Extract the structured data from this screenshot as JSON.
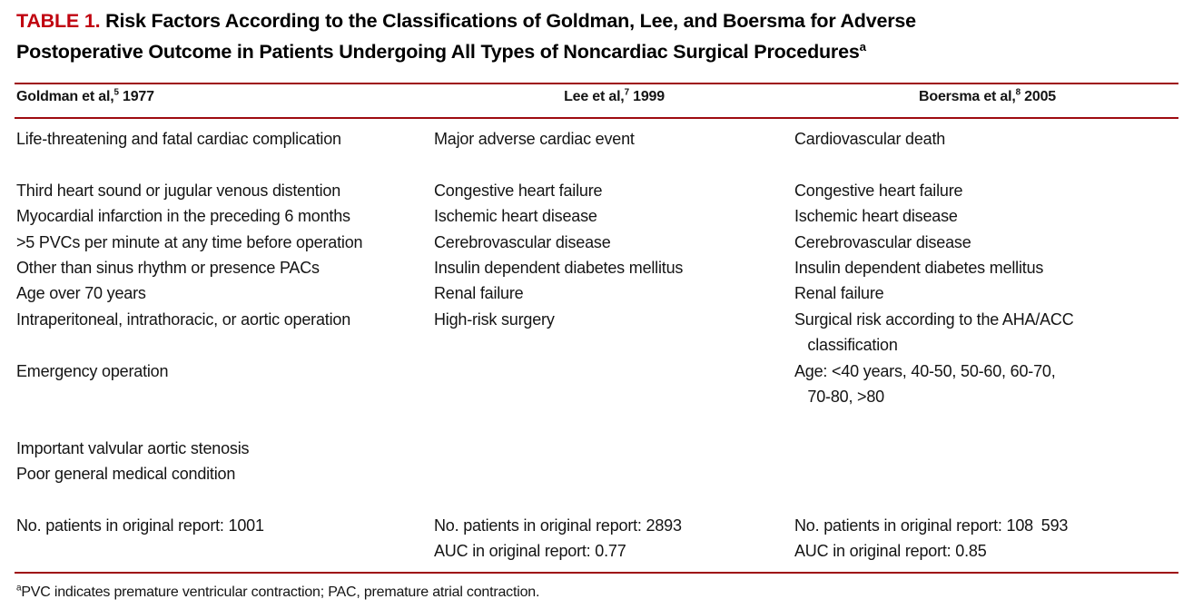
{
  "colors": {
    "red-label": "#c00410",
    "red-rule": "#9e0b10",
    "text": "#141414"
  },
  "title": {
    "label": "TABLE 1.",
    "line1_rest": " Risk Factors According to the Classifications of Goldman, Lee, and Boersma for Adverse",
    "line2": "Postoperative Outcome in Patients Undergoing All Types of Noncardiac Surgical Procedures",
    "superscript": "a"
  },
  "columns": [
    {
      "name": "Goldman et al,",
      "ref": "5",
      "year": " 1977"
    },
    {
      "name": "Lee et al,",
      "ref": "7",
      "year": " 1999"
    },
    {
      "name": "Boersma et al,",
      "ref": "8",
      "year": " 2005"
    }
  ],
  "rows": [
    {
      "g": "Life-threatening and fatal cardiac complication",
      "l": "Major adverse cardiac event",
      "b": "Cardiovascular death"
    },
    {
      "g": "",
      "l": "",
      "b": ""
    },
    {
      "g": "Third heart sound or jugular venous distention",
      "l": "Congestive heart failure",
      "b": "Congestive heart failure"
    },
    {
      "g": "Myocardial infarction in the preceding 6 months",
      "l": "Ischemic heart disease",
      "b": "Ischemic heart disease"
    },
    {
      "g": ">5 PVCs per minute at any time before operation",
      "l": "Cerebrovascular disease",
      "b": "Cerebrovascular disease"
    },
    {
      "g": "Other than sinus rhythm or presence PACs",
      "l": "Insulin dependent diabetes mellitus",
      "b": "Insulin dependent diabetes mellitus"
    },
    {
      "g": "Age over 70 years",
      "l": "Renal failure",
      "b": "Renal failure"
    },
    {
      "g": "Intraperitoneal, intrathoracic, or aortic operation",
      "l": "High-risk surgery",
      "b": "Surgical risk according to the AHA/ACC"
    },
    {
      "g": "",
      "l": "",
      "b": "   classification"
    },
    {
      "g": "Emergency operation",
      "l": "",
      "b": "Age: <40 years, 40-50, 50-60, 60-70,"
    },
    {
      "g": "",
      "l": "",
      "b": "   70-80, >80"
    },
    {
      "g": "",
      "l": "",
      "b": ""
    },
    {
      "g": "Important valvular aortic stenosis",
      "l": "",
      "b": ""
    },
    {
      "g": "Poor general medical condition",
      "l": "",
      "b": ""
    },
    {
      "g": "",
      "l": "",
      "b": ""
    },
    {
      "g": "No. patients in original report: 1001",
      "l": "No. patients in original report: 2893",
      "b": "No. patients in original report: 108 593"
    },
    {
      "g": "",
      "l": "AUC in original report: 0.77",
      "b": "AUC in original report: 0.85"
    }
  ],
  "footnote": {
    "superscript": "a",
    "text": "PVC indicates premature ventricular contraction; PAC, premature atrial contraction."
  }
}
